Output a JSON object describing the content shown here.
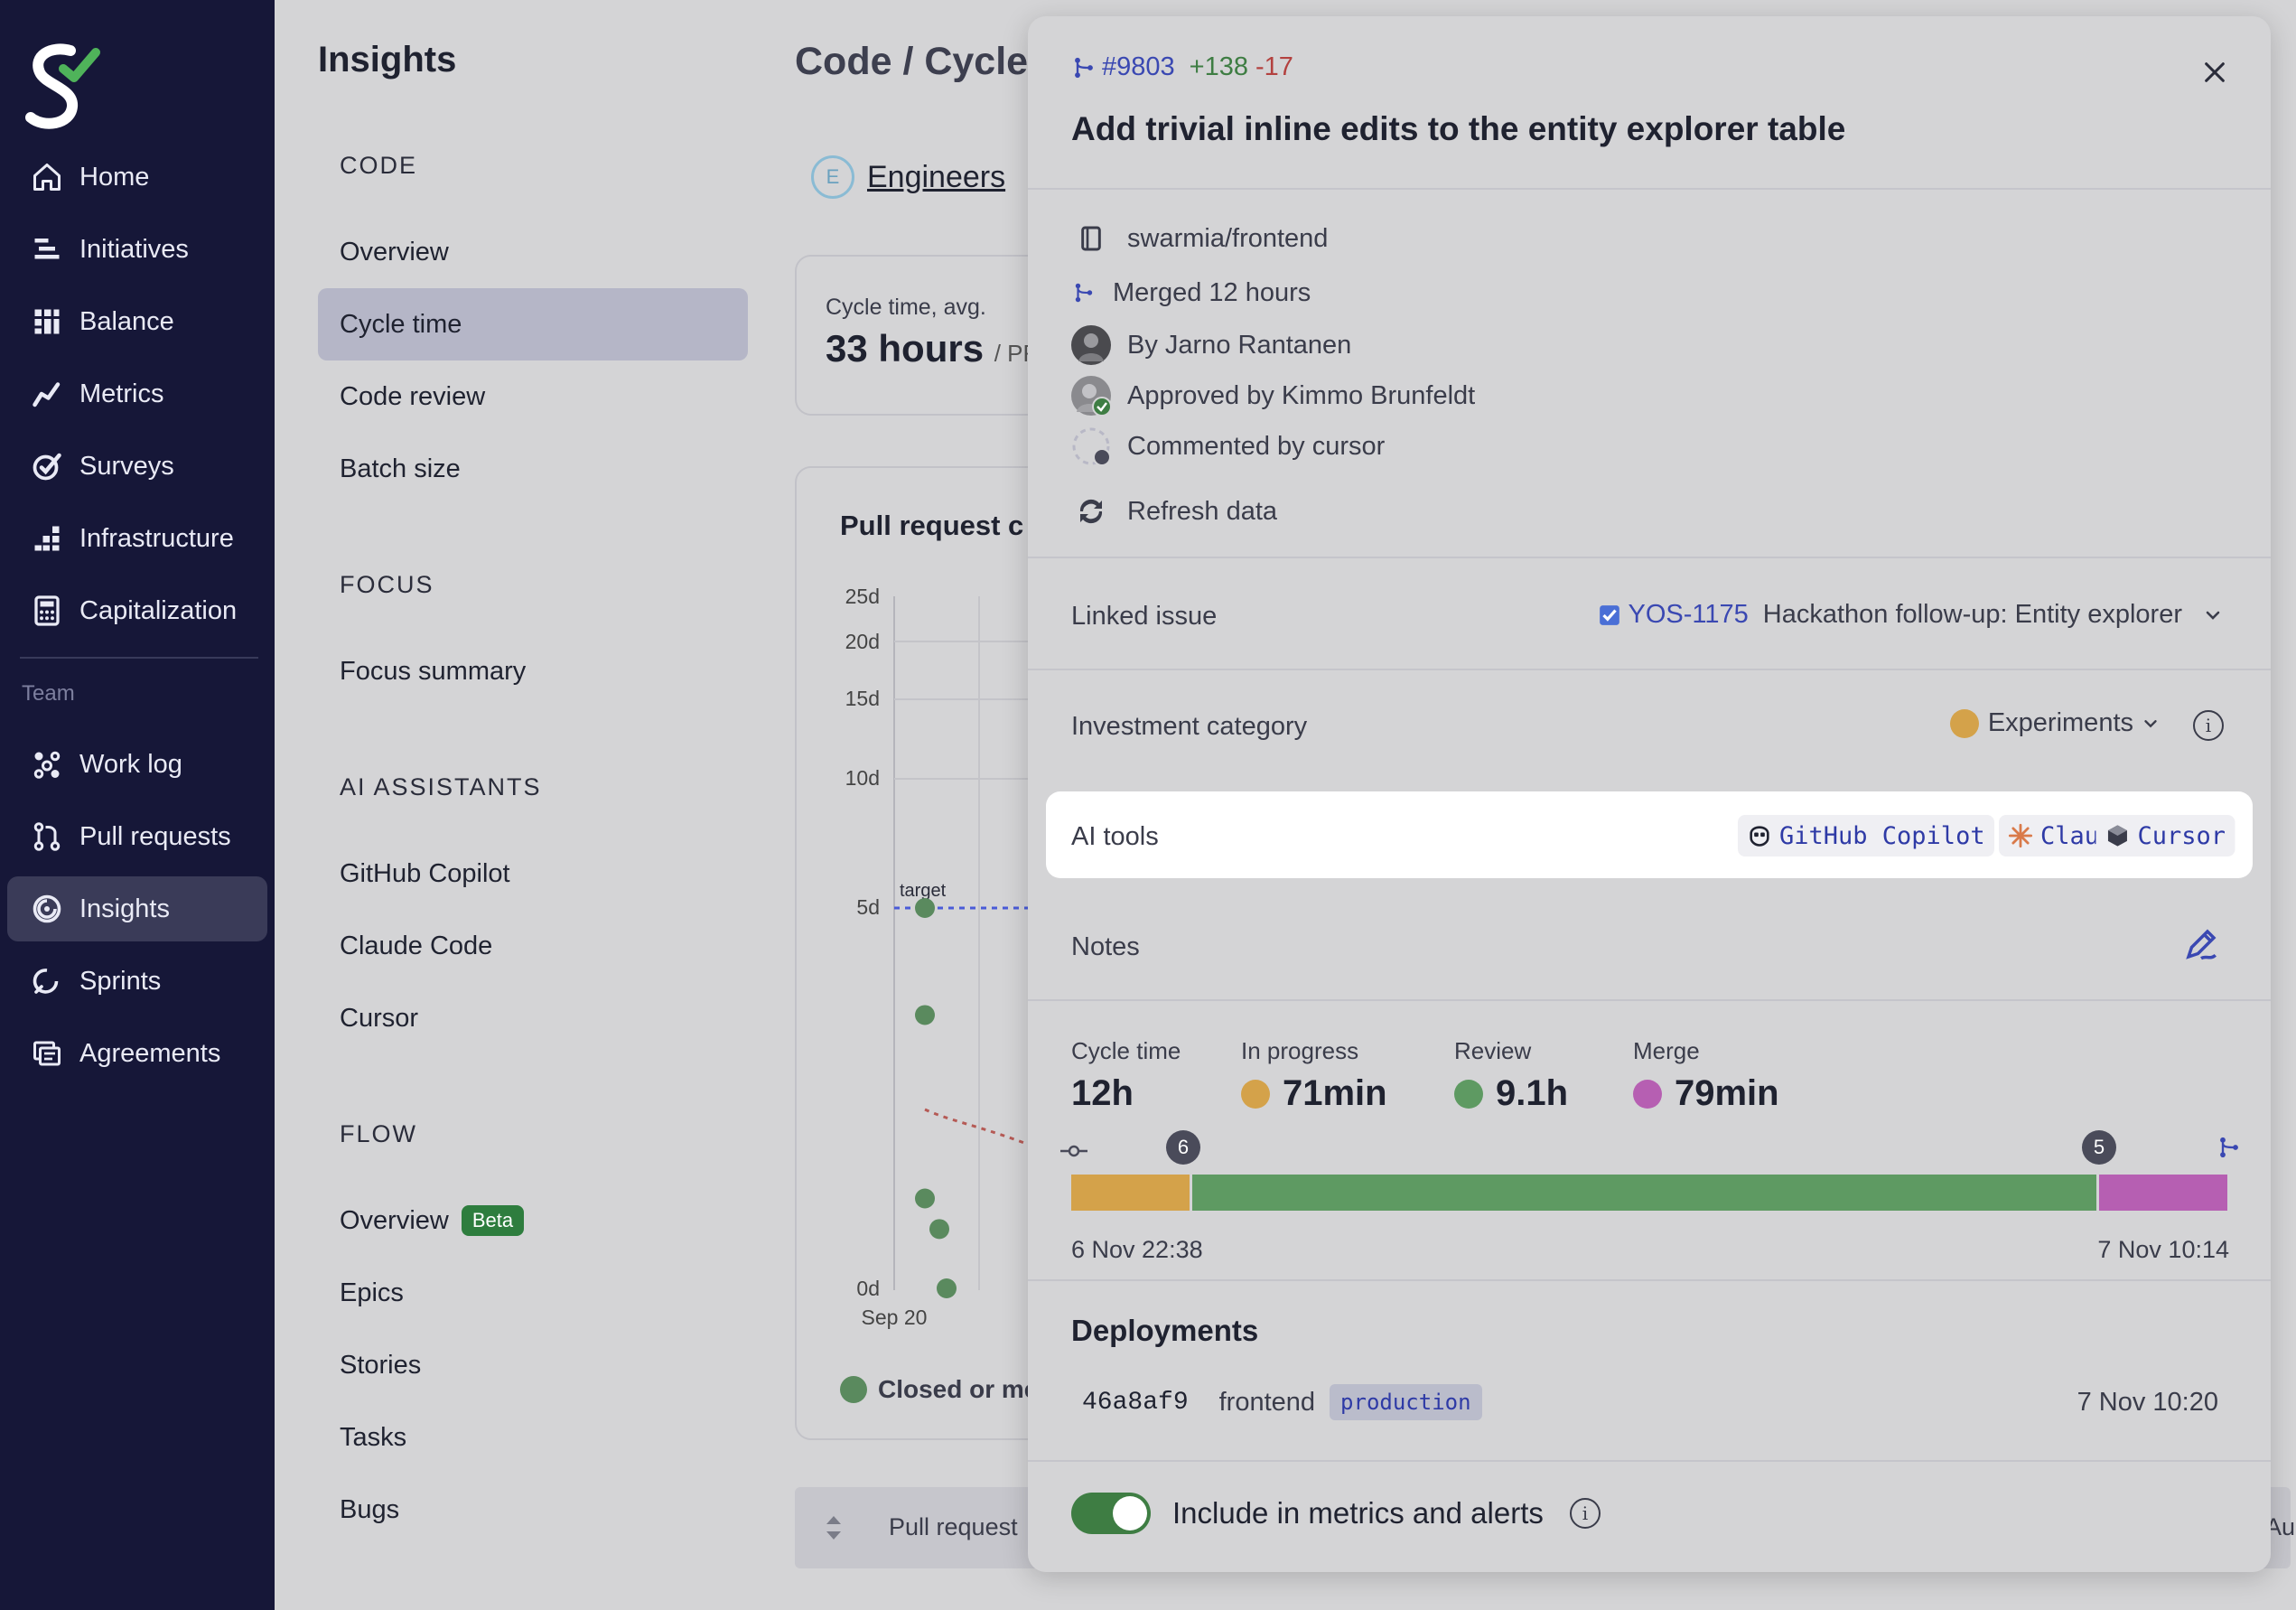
{
  "nav": {
    "items": [
      {
        "label": "Home",
        "icon": "home-icon"
      },
      {
        "label": "Initiatives",
        "icon": "initiatives-icon"
      },
      {
        "label": "Balance",
        "icon": "balance-icon"
      },
      {
        "label": "Metrics",
        "icon": "metrics-icon"
      },
      {
        "label": "Surveys",
        "icon": "surveys-icon"
      },
      {
        "label": "Infrastructure",
        "icon": "infrastructure-icon"
      },
      {
        "label": "Capitalization",
        "icon": "calculator-icon"
      }
    ],
    "team_label": "Team",
    "team_items": [
      {
        "label": "Work log",
        "icon": "work-log-icon"
      },
      {
        "label": "Pull requests",
        "icon": "pull-request-icon"
      },
      {
        "label": "Insights",
        "icon": "insights-icon",
        "active": true
      },
      {
        "label": "Sprints",
        "icon": "sprints-icon"
      },
      {
        "label": "Agreements",
        "icon": "agreements-icon"
      }
    ]
  },
  "subnav": {
    "title": "Insights",
    "sections": [
      {
        "heading": "CODE",
        "items": [
          "Overview",
          "Cycle time",
          "Code review",
          "Batch size"
        ]
      },
      {
        "heading": "FOCUS",
        "items": [
          "Focus summary"
        ]
      },
      {
        "heading": "AI ASSISTANTS",
        "items": [
          "GitHub Copilot",
          "Claude Code",
          "Cursor"
        ]
      },
      {
        "heading": "FLOW",
        "items": [
          "Overview",
          "Epics",
          "Stories",
          "Tasks",
          "Bugs"
        ]
      }
    ],
    "active_item": "Cycle time",
    "beta_label": "Beta"
  },
  "main": {
    "title": "Code / Cycle",
    "filter": {
      "initial": "E",
      "label": "Engineers"
    },
    "metric": {
      "label": "Cycle time, avg.",
      "value": "33 hours",
      "unit": "/ PR"
    },
    "chart_title": "Pull request c",
    "y_ticks": [
      "25d",
      "20d",
      "15d",
      "10d",
      "5d",
      "0d"
    ],
    "x_tick": "Sep 20",
    "target_label": "target",
    "legend": "Closed or me",
    "table_header": "Pull request",
    "table_header_right": "Au"
  },
  "chart_data": {
    "type": "scatter",
    "title": "Pull request c",
    "ylabel": "",
    "y_ticks": [
      "25d",
      "20d",
      "15d",
      "10d",
      "5d",
      "0d"
    ],
    "x_ticks": [
      "Sep 20"
    ],
    "target": {
      "label": "target",
      "value_days": 5
    },
    "series": [
      {
        "name": "Closed or me",
        "points_days": [
          5,
          3.6,
          1.2,
          0.8,
          0
        ]
      }
    ]
  },
  "panel": {
    "pr_number": "#9803",
    "additions": "+138",
    "deletions": "-17",
    "title": "Add trivial inline edits to the entity explorer table",
    "repo": "swarmia/frontend",
    "merged": "Merged 12 hours",
    "author": "By Jarno Rantanen",
    "approved": "Approved by Kimmo Brunfeldt",
    "commented": "Commented by cursor",
    "refresh": "Refresh data",
    "linked_issue_label": "Linked issue",
    "issue_key": "YOS-1175",
    "issue_title": "Hackathon follow-up: Entity explorer",
    "investment_label": "Investment category",
    "investment_value": "Experiments",
    "investment_color": "#d4a24a",
    "ai_tools_label": "AI tools",
    "ai_tools": [
      "GitHub Copilot",
      "Claude Code",
      "Cursor"
    ],
    "notes_label": "Notes",
    "stats": [
      {
        "label": "Cycle time",
        "value": "12h"
      },
      {
        "label": "In progress",
        "value": "71min",
        "color": "#d4a24a"
      },
      {
        "label": "Review",
        "value": "9.1h",
        "color": "#5e9a62"
      },
      {
        "label": "Merge",
        "value": "79min",
        "color": "#b65fb2"
      }
    ],
    "timeline": {
      "segments": [
        {
          "name": "In progress",
          "color": "#d4a24a",
          "fraction": 0.102
        },
        {
          "name": "Review",
          "color": "#5e9a62",
          "fraction": 0.785
        },
        {
          "name": "Merge",
          "color": "#b65fb2",
          "fraction": 0.113
        }
      ],
      "badge_left": "6",
      "badge_right": "5",
      "start": "6 Nov 22:38",
      "end": "7 Nov 10:14"
    },
    "deployments_label": "Deployments",
    "deployment": {
      "hash": "46a8af9",
      "repo": "frontend",
      "env": "production",
      "time": "7 Nov 10:20"
    },
    "include_label": "Include in metrics and alerts"
  }
}
